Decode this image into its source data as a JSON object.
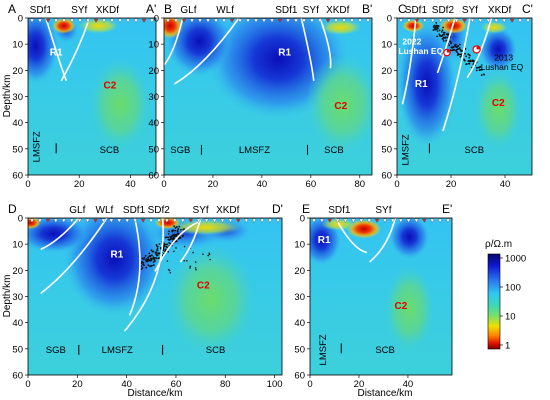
{
  "axis_labels": {
    "depth": "Depth/km",
    "distance": "Distance/km"
  },
  "colorbar": {
    "title": "ρ/Ω.m",
    "ticks": [
      "1000",
      "100",
      "10",
      "1"
    ]
  },
  "panels": [
    {
      "letter": "A",
      "end": "A'",
      "faults": [
        "SDf1",
        "SYf",
        "XKDf"
      ],
      "depth_ticks": [
        "0",
        "10",
        "20",
        "30",
        "40",
        "50",
        "60"
      ],
      "distance_ticks": [
        "0",
        "20",
        "40"
      ],
      "bodies": [
        "R1",
        "C2"
      ],
      "regions": [
        "LMSFZ",
        "SCB"
      ]
    },
    {
      "letter": "B",
      "end": "B'",
      "faults": [
        "GLf",
        "WLf",
        "SDf1",
        "SYf",
        "XKDf"
      ],
      "depth_ticks": [
        "0",
        "10",
        "20",
        "30",
        "40",
        "50",
        "60"
      ],
      "distance_ticks": [
        "0",
        "20",
        "40",
        "60",
        "80"
      ],
      "bodies": [
        "R1",
        "C2"
      ],
      "regions": [
        "SGB",
        "LMSFZ",
        "SCB"
      ]
    },
    {
      "letter": "C",
      "end": "C'",
      "faults": [
        "SDf1",
        "SDf2",
        "SYf",
        "XKDf"
      ],
      "depth_ticks": [
        "0",
        "10",
        "20",
        "30",
        "40",
        "50",
        "60"
      ],
      "distance_ticks": [
        "0",
        "20",
        "40"
      ],
      "bodies": [
        "R1",
        "C2"
      ],
      "regions": [
        "LMSFZ",
        "SCB"
      ],
      "events": [
        {
          "year": "2022",
          "name": "Lushan EQ"
        },
        {
          "year": "2013",
          "name": "Lushan EQ"
        }
      ]
    },
    {
      "letter": "D",
      "end": "D'",
      "faults": [
        "GLf",
        "WLf",
        "SDf1",
        "SDf2",
        "SYf",
        "XKDf"
      ],
      "depth_ticks": [
        "0",
        "10",
        "20",
        "30",
        "40",
        "50",
        "60"
      ],
      "distance_ticks": [
        "0",
        "20",
        "40",
        "60",
        "80",
        "100"
      ],
      "bodies": [
        "R1",
        "C2"
      ],
      "regions": [
        "SGB",
        "LMSFZ",
        "SCB"
      ]
    },
    {
      "letter": "E",
      "end": "E'",
      "faults": [
        "SDf1",
        "SYf"
      ],
      "depth_ticks": [
        "0",
        "10",
        "20",
        "30",
        "40",
        "50",
        "60"
      ],
      "distance_ticks": [
        "0",
        "20",
        "40"
      ],
      "bodies": [
        "R1",
        "C2"
      ],
      "regions": [
        "LMSFZ",
        "SCB"
      ]
    }
  ]
}
